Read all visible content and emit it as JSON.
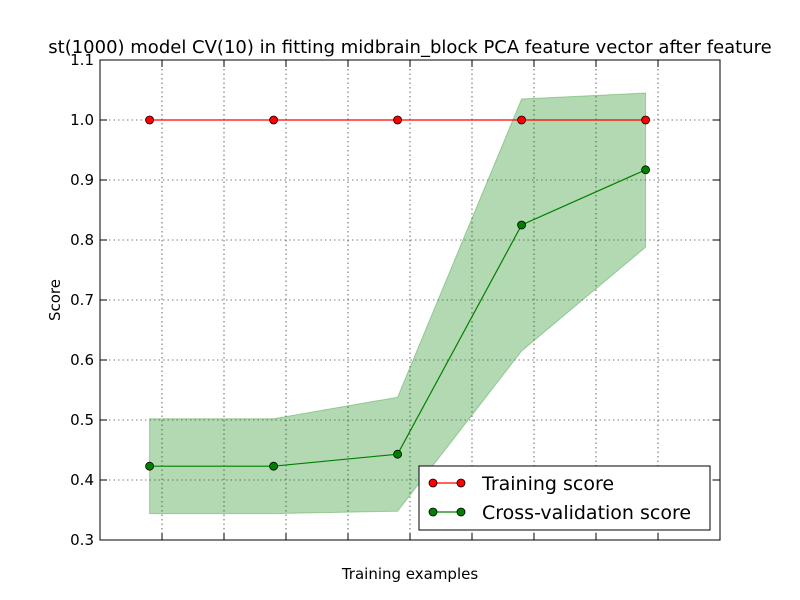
{
  "chart_data": {
    "type": "line",
    "title": "st(1000) model CV(10) in fitting midbrain_block PCA feature vector after feature",
    "xlabel": "Training examples",
    "ylabel": "Score",
    "ylim": [
      0.3,
      1.1
    ],
    "yticks": [
      "0.3",
      "0.4",
      "0.5",
      "0.6",
      "0.7",
      "0.8",
      "0.9",
      "1.0",
      "1.1"
    ],
    "x": [
      1,
      2,
      3,
      4,
      5
    ],
    "grid": true,
    "legend_position": "lower-right",
    "series": [
      {
        "name": "Training score",
        "color": "#ff0000",
        "values": [
          1.0,
          1.0,
          1.0,
          1.0,
          1.0
        ],
        "band_upper": [
          1.0,
          1.0,
          1.0,
          1.0,
          1.0
        ],
        "band_lower": [
          1.0,
          1.0,
          1.0,
          1.0,
          1.0
        ]
      },
      {
        "name": "Cross-validation score",
        "color": "#008000",
        "band_color": "#008000",
        "values": [
          0.423,
          0.423,
          0.443,
          0.825,
          0.917
        ],
        "band_upper": [
          0.502,
          0.502,
          0.538,
          1.035,
          1.045
        ],
        "band_lower": [
          0.344,
          0.344,
          0.348,
          0.615,
          0.788
        ]
      }
    ]
  }
}
